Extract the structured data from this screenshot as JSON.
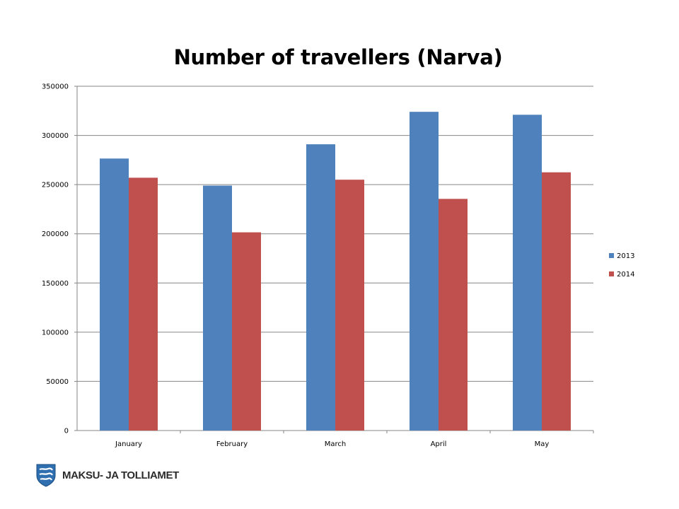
{
  "chart_data": {
    "type": "bar",
    "title": "Number of travellers (Narva)",
    "xlabel": "",
    "ylabel": "",
    "categories": [
      "January",
      "February",
      "March",
      "April",
      "May"
    ],
    "series": [
      {
        "name": "2013",
        "color": "#4f81bd",
        "values": [
          276500,
          249000,
          291000,
          324000,
          321000
        ]
      },
      {
        "name": "2014",
        "color": "#c0504d",
        "values": [
          257000,
          201500,
          255000,
          235500,
          262500
        ]
      }
    ],
    "ylim": [
      0,
      350000
    ],
    "yticks": [
      "0",
      "50000",
      "100000",
      "150000",
      "200000",
      "250000",
      "300000",
      "350000"
    ],
    "grid": true,
    "legend": "right"
  },
  "footer": {
    "agency": "MAKSU- JA TOLLIAMET",
    "logo_icon": "coat-of-arms-shield-icon"
  }
}
